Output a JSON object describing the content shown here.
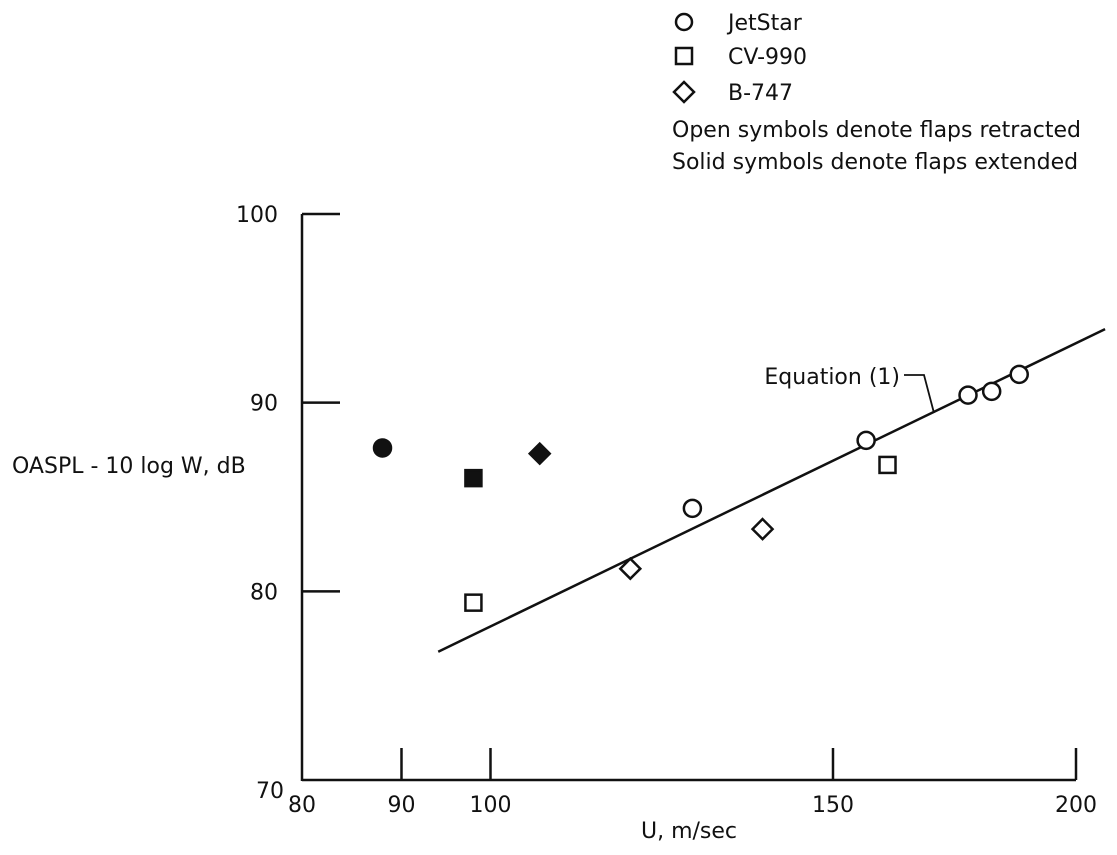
{
  "chart_data": {
    "type": "scatter",
    "title": "",
    "xlabel": "U, m/sec",
    "ylabel": "OASPL - 10 log W, dB",
    "x_scale": "log",
    "xlim": [
      80,
      200
    ],
    "ylim": [
      70,
      100
    ],
    "x_ticks": [
      80,
      90,
      100,
      150,
      200
    ],
    "y_ticks": [
      70,
      80,
      90,
      100
    ],
    "grid": false,
    "legend": {
      "placement": "top-right",
      "entries": [
        {
          "label": "JetStar",
          "marker": "circle"
        },
        {
          "label": "CV-990",
          "marker": "square"
        },
        {
          "label": "B-747",
          "marker": "diamond"
        }
      ],
      "notes": [
        "Open symbols denote flaps retracted",
        "Solid symbols denote flaps extended"
      ]
    },
    "series": [
      {
        "name": "JetStar",
        "marker": "circle",
        "flaps": "retracted",
        "points": [
          {
            "x": 127,
            "y": 84.4
          },
          {
            "x": 156,
            "y": 88.0
          },
          {
            "x": 176,
            "y": 90.4
          },
          {
            "x": 181,
            "y": 90.6
          },
          {
            "x": 187,
            "y": 91.5
          }
        ]
      },
      {
        "name": "JetStar",
        "marker": "circle",
        "flaps": "extended",
        "points": [
          {
            "x": 88,
            "y": 87.6
          }
        ]
      },
      {
        "name": "CV-990",
        "marker": "square",
        "flaps": "retracted",
        "points": [
          {
            "x": 98,
            "y": 79.4
          },
          {
            "x": 160,
            "y": 86.7
          }
        ]
      },
      {
        "name": "CV-990",
        "marker": "square",
        "flaps": "extended",
        "points": [
          {
            "x": 98,
            "y": 86.0
          }
        ]
      },
      {
        "name": "B-747",
        "marker": "diamond",
        "flaps": "retracted",
        "points": [
          {
            "x": 118,
            "y": 81.2
          },
          {
            "x": 138,
            "y": 83.3
          }
        ]
      },
      {
        "name": "B-747",
        "marker": "diamond",
        "flaps": "extended",
        "points": [
          {
            "x": 106,
            "y": 87.3
          }
        ]
      }
    ],
    "lines": [
      {
        "label": "Equation (1)",
        "points": [
          {
            "x": 94,
            "y": 76.8
          },
          {
            "x": 207,
            "y": 93.9
          }
        ]
      }
    ]
  }
}
